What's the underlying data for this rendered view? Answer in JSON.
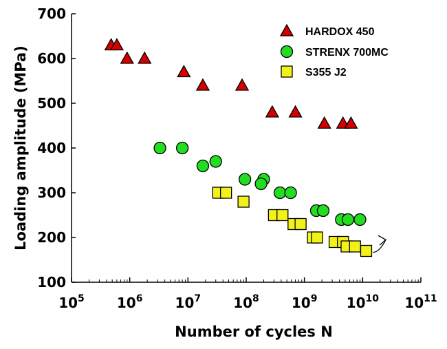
{
  "chart_data": {
    "type": "scatter",
    "xlabel": "Number of cycles N",
    "ylabel": "Loading amplitude (MPa)",
    "x_scale": "log",
    "xlim": [
      100000,
      100000000000
    ],
    "ylim": [
      100,
      700
    ],
    "x_ticks": [
      {
        "value": 100000,
        "base": "10",
        "exp": "5"
      },
      {
        "value": 1000000,
        "base": "10",
        "exp": "6"
      },
      {
        "value": 10000000,
        "base": "10",
        "exp": "7"
      },
      {
        "value": 100000000,
        "base": "10",
        "exp": "8"
      },
      {
        "value": 1000000000,
        "base": "10",
        "exp": "9"
      },
      {
        "value": 10000000000,
        "base": "10",
        "exp": "10"
      },
      {
        "value": 100000000000,
        "base": "10",
        "exp": "11"
      }
    ],
    "y_ticks": [
      "100",
      "200",
      "300",
      "400",
      "500",
      "600",
      "700"
    ],
    "grid": false,
    "legend_position": "top-right",
    "series": [
      {
        "name": "HARDOX 450",
        "marker": "triangle",
        "color": "#d40000",
        "points": [
          [
            480000,
            630
          ],
          [
            600000,
            630
          ],
          [
            900000,
            600
          ],
          [
            1800000,
            600
          ],
          [
            8500000,
            570
          ],
          [
            18000000,
            540
          ],
          [
            85000000,
            540
          ],
          [
            280000000,
            480
          ],
          [
            700000000,
            480
          ],
          [
            2200000000,
            455
          ],
          [
            4600000000,
            455
          ],
          [
            6300000000,
            455
          ]
        ]
      },
      {
        "name": "STRENX 700MC",
        "marker": "circle",
        "color": "#22dd22",
        "points": [
          [
            3300000,
            400
          ],
          [
            8000000,
            400
          ],
          [
            18000000,
            360
          ],
          [
            30000000,
            370
          ],
          [
            95000000,
            330
          ],
          [
            200000000,
            330
          ],
          [
            180000000,
            320
          ],
          [
            380000000,
            300
          ],
          [
            580000000,
            300
          ],
          [
            1600000000,
            260
          ],
          [
            2100000000,
            260
          ],
          [
            4300000000,
            240
          ],
          [
            5600000000,
            240
          ],
          [
            9000000000,
            240
          ]
        ]
      },
      {
        "name": "S355 J2",
        "marker": "square",
        "color": "#f2f21a",
        "points": [
          [
            33000000,
            300
          ],
          [
            45000000,
            300
          ],
          [
            90000000,
            280
          ],
          [
            300000000,
            250
          ],
          [
            420000000,
            250
          ],
          [
            650000000,
            230
          ],
          [
            860000000,
            230
          ],
          [
            1400000000,
            200
          ],
          [
            1650000000,
            200
          ],
          [
            3300000000,
            190
          ],
          [
            4600000000,
            190
          ],
          [
            5300000000,
            180
          ],
          [
            7400000000,
            180
          ],
          [
            11500000000,
            170
          ]
        ]
      }
    ],
    "annotations": [
      {
        "type": "arrow",
        "from": [
          11500000000,
          170
        ],
        "to": [
          25000000000,
          195
        ]
      }
    ]
  }
}
